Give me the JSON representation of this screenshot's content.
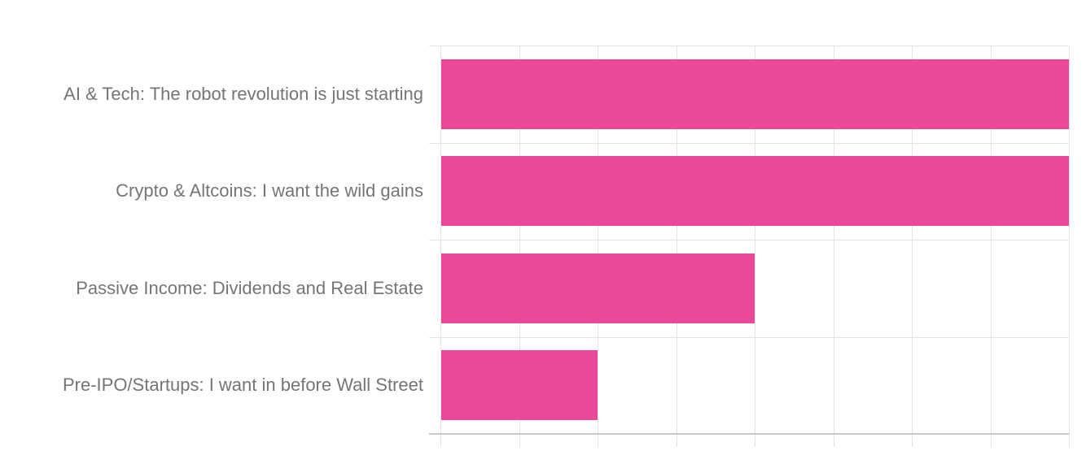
{
  "chart_data": {
    "type": "bar",
    "orientation": "horizontal",
    "title": "",
    "xlabel": "",
    "ylabel": "",
    "categories": [
      "AI & Tech: The robot revolution is just starting",
      "Crypto & Altcoins: I want the wild gains",
      "Passive Income: Dividends and Real Estate",
      "Pre-IPO/Startups: I want in before Wall Street"
    ],
    "values": [
      8,
      8,
      4,
      2
    ],
    "xlim": [
      0,
      8
    ],
    "x_gridline_step": 1,
    "x_gridline_count": 8,
    "grid": true,
    "legend": false,
    "axis_tick_labels_visible": false,
    "colors": {
      "bar": "#ec4899",
      "gridline": "#e4e4e4",
      "axis_bottom": "#c9c9c9",
      "label_text": "#757575",
      "background": "#ffffff"
    }
  }
}
